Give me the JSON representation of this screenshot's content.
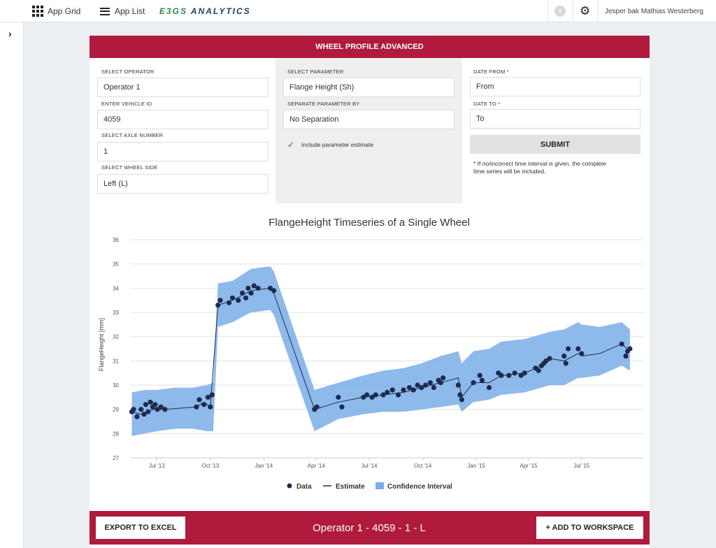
{
  "topbar": {
    "app_grid": "App Grid",
    "app_list": "App List",
    "brand_prefix": "E3GS",
    "brand_suffix": "ANALYTICS",
    "info_glyph": "i",
    "user": "Jesper bak Mathias Westerberg"
  },
  "panel": {
    "header": "WHEEL PROFILE ADVANCED",
    "operator": {
      "label": "SELECT OPERATOR",
      "value": "Operator 1"
    },
    "vehicle": {
      "label": "ENTER VEHICLE ID",
      "value": "4059"
    },
    "axle": {
      "label": "SELECT AXLE NUMBER",
      "value": "1"
    },
    "wheel_side": {
      "label": "SELECT WHEEL SIDE",
      "value": "Left (L)"
    },
    "parameter": {
      "label": "SELECT PARAMETER",
      "value": "Flange Height (Sh)"
    },
    "separate": {
      "label": "SEPARATE PARAMETER BY",
      "value": "No Separation"
    },
    "include_estimate": {
      "label": "Include parameter estimate",
      "checked": true
    },
    "date_from": {
      "label": "DATE FROM *",
      "placeholder": "From"
    },
    "date_to": {
      "label": "DATE TO *",
      "placeholder": "To"
    },
    "submit": "SUBMIT",
    "note_line1": "* If no/incorrect time interval is given, the complete",
    "note_line2": "time series will be included."
  },
  "footer": {
    "export": "EXPORT TO EXCEL",
    "title": "Operator 1 - 4059 - 1 - L",
    "add": "+ ADD TO WORKSPACE"
  },
  "chart_data": {
    "type": "line",
    "title": "FlangeHeight Timeseries of a Single Wheel",
    "ylabel": "FlangeHeight [mm]",
    "xlabel": "",
    "ylim": [
      27,
      36
    ],
    "yticks": [
      27,
      28,
      29,
      30,
      31,
      32,
      33,
      34,
      35,
      36
    ],
    "xlim": [
      "2013-05-16",
      "2015-10-15"
    ],
    "xticks": [
      {
        "date": "2013-07-01",
        "label": "Jul '13"
      },
      {
        "date": "2013-10-01",
        "label": "Oct '13"
      },
      {
        "date": "2014-01-01",
        "label": "Jan '14"
      },
      {
        "date": "2014-04-01",
        "label": "Apr '14"
      },
      {
        "date": "2014-07-01",
        "label": "Jul '14"
      },
      {
        "date": "2014-10-01",
        "label": "Oct '14"
      },
      {
        "date": "2015-01-01",
        "label": "Jan '15"
      },
      {
        "date": "2015-04-01",
        "label": "Apr '15"
      },
      {
        "date": "2015-07-01",
        "label": "Jul '15"
      }
    ],
    "grid": true,
    "legend_position": "bottom",
    "colors": {
      "data": "#1c2b4e",
      "estimate": "#1c2b4e",
      "ci": "#7aaee8"
    },
    "series": [
      {
        "name": "Data",
        "points": [
          [
            "2013-05-19",
            28.9
          ],
          [
            "2013-05-22",
            29.0
          ],
          [
            "2013-05-28",
            28.7
          ],
          [
            "2013-06-04",
            29.0
          ],
          [
            "2013-06-09",
            28.8
          ],
          [
            "2013-06-12",
            29.2
          ],
          [
            "2013-06-16",
            28.9
          ],
          [
            "2013-06-20",
            29.3
          ],
          [
            "2013-06-24",
            29.1
          ],
          [
            "2013-06-28",
            29.2
          ],
          [
            "2013-07-02",
            29.0
          ],
          [
            "2013-07-08",
            29.1
          ],
          [
            "2013-07-15",
            29.0
          ],
          [
            "2013-09-07",
            29.1
          ],
          [
            "2013-09-12",
            29.4
          ],
          [
            "2013-09-20",
            29.2
          ],
          [
            "2013-09-27",
            29.5
          ],
          [
            "2013-10-01",
            29.1
          ],
          [
            "2013-10-04",
            29.6
          ],
          [
            "2013-10-14",
            33.3
          ],
          [
            "2013-10-18",
            33.5
          ],
          [
            "2013-11-02",
            33.4
          ],
          [
            "2013-11-08",
            33.6
          ],
          [
            "2013-11-18",
            33.5
          ],
          [
            "2013-11-25",
            33.8
          ],
          [
            "2013-12-01",
            33.6
          ],
          [
            "2013-12-05",
            34.0
          ],
          [
            "2013-12-10",
            33.8
          ],
          [
            "2013-12-15",
            34.1
          ],
          [
            "2013-12-22",
            34.0
          ],
          [
            "2014-01-12",
            34.0
          ],
          [
            "2014-01-18",
            33.9
          ],
          [
            "2014-03-29",
            29.0
          ],
          [
            "2014-04-02",
            29.1
          ],
          [
            "2014-05-09",
            29.5
          ],
          [
            "2014-05-15",
            29.1
          ],
          [
            "2014-06-21",
            29.5
          ],
          [
            "2014-06-27",
            29.6
          ],
          [
            "2014-07-06",
            29.5
          ],
          [
            "2014-07-12",
            29.6
          ],
          [
            "2014-07-25",
            29.6
          ],
          [
            "2014-08-01",
            29.7
          ],
          [
            "2014-08-10",
            29.8
          ],
          [
            "2014-08-20",
            29.6
          ],
          [
            "2014-08-29",
            29.8
          ],
          [
            "2014-09-08",
            29.9
          ],
          [
            "2014-09-15",
            29.8
          ],
          [
            "2014-09-22",
            30.0
          ],
          [
            "2014-09-29",
            29.9
          ],
          [
            "2014-10-06",
            30.0
          ],
          [
            "2014-10-14",
            30.1
          ],
          [
            "2014-10-20",
            29.9
          ],
          [
            "2014-10-28",
            30.2
          ],
          [
            "2014-11-01",
            30.1
          ],
          [
            "2014-11-05",
            30.3
          ],
          [
            "2014-12-01",
            30.0
          ],
          [
            "2014-12-04",
            29.6
          ],
          [
            "2014-12-07",
            29.4
          ],
          [
            "2014-12-27",
            30.1
          ],
          [
            "2015-01-07",
            30.4
          ],
          [
            "2015-01-11",
            30.2
          ],
          [
            "2015-01-23",
            29.9
          ],
          [
            "2015-02-08",
            30.5
          ],
          [
            "2015-02-13",
            30.4
          ],
          [
            "2015-02-26",
            30.4
          ],
          [
            "2015-03-08",
            30.5
          ],
          [
            "2015-03-19",
            30.4
          ],
          [
            "2015-03-25",
            30.5
          ],
          [
            "2015-04-13",
            30.7
          ],
          [
            "2015-04-18",
            30.6
          ],
          [
            "2015-04-23",
            30.8
          ],
          [
            "2015-04-27",
            30.9
          ],
          [
            "2015-05-01",
            31.0
          ],
          [
            "2015-05-07",
            31.1
          ],
          [
            "2015-06-01",
            31.2
          ],
          [
            "2015-06-04",
            30.9
          ],
          [
            "2015-06-08",
            31.5
          ],
          [
            "2015-06-25",
            31.5
          ],
          [
            "2015-07-01",
            31.3
          ],
          [
            "2015-09-08",
            31.7
          ],
          [
            "2015-09-15",
            31.2
          ],
          [
            "2015-09-18",
            31.4
          ],
          [
            "2015-09-22",
            31.5
          ]
        ]
      },
      {
        "name": "Estimate",
        "points": [
          [
            "2013-05-19",
            28.9
          ],
          [
            "2013-06-04",
            28.8
          ],
          [
            "2013-06-24",
            29.0
          ],
          [
            "2013-07-15",
            29.0
          ],
          [
            "2013-09-07",
            29.1
          ],
          [
            "2013-09-20",
            29.3
          ],
          [
            "2013-10-01",
            29.1
          ],
          [
            "2013-10-14",
            33.3
          ],
          [
            "2013-11-08",
            33.5
          ],
          [
            "2013-12-10",
            33.9
          ],
          [
            "2014-01-12",
            34.0
          ],
          [
            "2014-01-18",
            33.8
          ],
          [
            "2014-03-29",
            29.0
          ],
          [
            "2014-05-09",
            29.3
          ],
          [
            "2014-06-21",
            29.5
          ],
          [
            "2014-07-25",
            29.6
          ],
          [
            "2014-08-29",
            29.7
          ],
          [
            "2014-09-29",
            29.9
          ],
          [
            "2014-11-01",
            30.1
          ],
          [
            "2014-12-01",
            30.3
          ],
          [
            "2014-12-07",
            29.5
          ],
          [
            "2014-12-27",
            30.1
          ],
          [
            "2015-01-23",
            30.1
          ],
          [
            "2015-02-13",
            30.4
          ],
          [
            "2015-03-25",
            30.5
          ],
          [
            "2015-04-23",
            30.8
          ],
          [
            "2015-05-07",
            31.1
          ],
          [
            "2015-06-01",
            31.0
          ],
          [
            "2015-06-25",
            31.3
          ],
          [
            "2015-07-01",
            31.2
          ],
          [
            "2015-08-01",
            31.3
          ],
          [
            "2015-09-08",
            31.7
          ],
          [
            "2015-09-22",
            31.4
          ]
        ]
      },
      {
        "name": "Confidence Interval",
        "upper": [
          [
            "2013-05-19",
            29.7
          ],
          [
            "2013-06-10",
            29.8
          ],
          [
            "2013-07-01",
            29.8
          ],
          [
            "2013-08-01",
            29.9
          ],
          [
            "2013-09-01",
            29.9
          ],
          [
            "2013-09-25",
            30.0
          ],
          [
            "2013-10-06",
            30.1
          ],
          [
            "2013-10-14",
            34.2
          ],
          [
            "2013-11-08",
            34.3
          ],
          [
            "2013-12-10",
            34.8
          ],
          [
            "2014-01-12",
            34.9
          ],
          [
            "2014-01-18",
            34.7
          ],
          [
            "2014-03-29",
            29.8
          ],
          [
            "2014-05-09",
            30.1
          ],
          [
            "2014-06-21",
            30.4
          ],
          [
            "2014-07-25",
            30.6
          ],
          [
            "2014-08-29",
            30.7
          ],
          [
            "2014-09-29",
            30.9
          ],
          [
            "2014-11-01",
            31.2
          ],
          [
            "2014-12-01",
            31.4
          ],
          [
            "2014-12-07",
            30.9
          ],
          [
            "2014-12-27",
            31.4
          ],
          [
            "2015-01-23",
            31.5
          ],
          [
            "2015-02-13",
            31.8
          ],
          [
            "2015-03-25",
            31.9
          ],
          [
            "2015-04-23",
            32.1
          ],
          [
            "2015-05-07",
            32.2
          ],
          [
            "2015-06-01",
            32.3
          ],
          [
            "2015-06-25",
            32.6
          ],
          [
            "2015-07-01",
            32.5
          ],
          [
            "2015-08-01",
            32.4
          ],
          [
            "2015-09-08",
            32.6
          ],
          [
            "2015-09-22",
            32.3
          ]
        ],
        "lower": [
          [
            "2013-05-19",
            27.9
          ],
          [
            "2013-06-10",
            28.0
          ],
          [
            "2013-07-01",
            28.1
          ],
          [
            "2013-08-01",
            28.2
          ],
          [
            "2013-09-01",
            28.2
          ],
          [
            "2013-09-25",
            28.1
          ],
          [
            "2013-10-06",
            28.1
          ],
          [
            "2013-10-14",
            32.4
          ],
          [
            "2013-11-08",
            32.6
          ],
          [
            "2013-12-10",
            33.0
          ],
          [
            "2014-01-12",
            33.1
          ],
          [
            "2014-01-18",
            32.9
          ],
          [
            "2014-03-29",
            28.1
          ],
          [
            "2014-05-09",
            28.6
          ],
          [
            "2014-06-21",
            28.8
          ],
          [
            "2014-07-25",
            28.9
          ],
          [
            "2014-08-29",
            28.9
          ],
          [
            "2014-09-29",
            29.0
          ],
          [
            "2014-11-01",
            29.1
          ],
          [
            "2014-12-01",
            29.2
          ],
          [
            "2014-12-07",
            28.9
          ],
          [
            "2014-12-27",
            29.3
          ],
          [
            "2015-01-23",
            29.4
          ],
          [
            "2015-02-13",
            29.6
          ],
          [
            "2015-03-25",
            29.7
          ],
          [
            "2015-04-23",
            29.9
          ],
          [
            "2015-05-07",
            30.0
          ],
          [
            "2015-06-01",
            30.0
          ],
          [
            "2015-06-25",
            30.3
          ],
          [
            "2015-07-01",
            30.3
          ],
          [
            "2015-08-01",
            30.4
          ],
          [
            "2015-09-08",
            30.8
          ],
          [
            "2015-09-22",
            30.6
          ]
        ]
      }
    ]
  }
}
